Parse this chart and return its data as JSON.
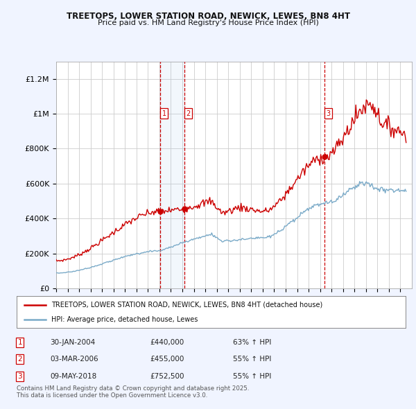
{
  "title1": "TREETOPS, LOWER STATION ROAD, NEWICK, LEWES, BN8 4HT",
  "title2": "Price paid vs. HM Land Registry's House Price Index (HPI)",
  "bg_color": "#f0f4ff",
  "plot_bg_color": "#ffffff",
  "grid_color": "#cccccc",
  "red_line_color": "#cc0000",
  "blue_line_color": "#7aaac8",
  "dashed_color": "#cc0000",
  "sale1_x": 2004.08,
  "sale1_label": "1",
  "sale2_x": 2006.17,
  "sale2_label": "2",
  "sale3_x": 2018.36,
  "sale3_label": "3",
  "ylim_max": 1300000,
  "xlim_min": 1995,
  "xlim_max": 2026,
  "yticks": [
    0,
    200000,
    400000,
    600000,
    800000,
    1000000,
    1200000
  ],
  "ytick_labels": [
    "£0",
    "£200K",
    "£400K",
    "£600K",
    "£800K",
    "£1M",
    "£1.2M"
  ],
  "legend_label_red": "TREETOPS, LOWER STATION ROAD, NEWICK, LEWES, BN8 4HT (detached house)",
  "legend_label_blue": "HPI: Average price, detached house, Lewes",
  "table_rows": [
    [
      "1",
      "30-JAN-2004",
      "£440,000",
      "63% ↑ HPI"
    ],
    [
      "2",
      "03-MAR-2006",
      "£455,000",
      "55% ↑ HPI"
    ],
    [
      "3",
      "09-MAY-2018",
      "£752,500",
      "55% ↑ HPI"
    ]
  ],
  "footnote": "Contains HM Land Registry data © Crown copyright and database right 2025.\nThis data is licensed under the Open Government Licence v3.0."
}
